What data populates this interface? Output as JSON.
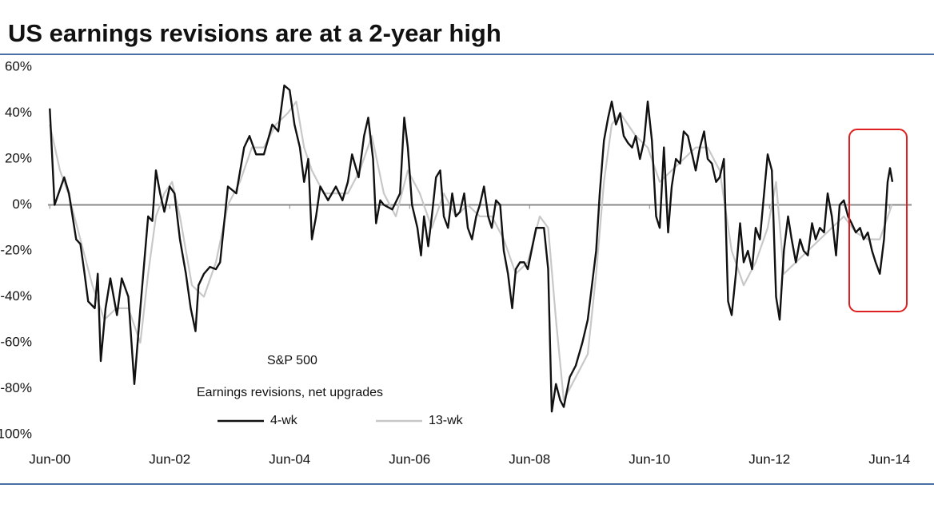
{
  "chart_data": {
    "type": "line",
    "title": "US earnings revisions are at a 2-year high",
    "annotations": [
      "S&P 500",
      "Earnings revisions, net upgrades"
    ],
    "xlim": [
      2000.39,
      2014.79
    ],
    "xticks": [
      {
        "value": 2000.42,
        "label": "Jun-00"
      },
      {
        "value": 2002.42,
        "label": "Jun-02"
      },
      {
        "value": 2004.42,
        "label": "Jun-04"
      },
      {
        "value": 2006.42,
        "label": "Jun-06"
      },
      {
        "value": 2008.42,
        "label": "Jun-08"
      },
      {
        "value": 2010.42,
        "label": "Jun-10"
      },
      {
        "value": 2012.42,
        "label": "Jun-12"
      },
      {
        "value": 2014.42,
        "label": "Jun-14"
      }
    ],
    "ylim": [
      -100,
      60
    ],
    "yticks": [
      {
        "value": 60,
        "label": "60%"
      },
      {
        "value": 40,
        "label": "40%"
      },
      {
        "value": 20,
        "label": "20%"
      },
      {
        "value": 0,
        "label": "0%"
      },
      {
        "value": -20,
        "label": "-20%"
      },
      {
        "value": -40,
        "label": "-40%"
      },
      {
        "value": -60,
        "label": "-60%"
      },
      {
        "value": -80,
        "label": "-80%"
      },
      {
        "value": -100,
        "label": "-100%"
      }
    ],
    "series": [
      {
        "name": "4-wk",
        "color": "#111111",
        "x": [
          2000.42,
          2000.5,
          2000.66,
          2000.74,
          2000.86,
          2000.93,
          2000.99,
          2001.06,
          2001.17,
          2001.22,
          2001.27,
          2001.35,
          2001.43,
          2001.54,
          2001.62,
          2001.73,
          2001.83,
          2001.93,
          2002.06,
          2002.13,
          2002.19,
          2002.26,
          2002.33,
          2002.42,
          2002.5,
          2002.59,
          2002.69,
          2002.77,
          2002.85,
          2002.9,
          2002.99,
          2003.09,
          2003.19,
          2003.26,
          2003.39,
          2003.53,
          2003.66,
          2003.75,
          2003.86,
          2003.99,
          2004.13,
          2004.23,
          2004.33,
          2004.42,
          2004.5,
          2004.59,
          2004.66,
          2004.73,
          2004.79,
          2004.86,
          2004.93,
          2005.06,
          2005.19,
          2005.3,
          2005.39,
          2005.46,
          2005.57,
          2005.66,
          2005.73,
          2005.81,
          2005.86,
          2005.93,
          2005.99,
          2006.13,
          2006.26,
          2006.33,
          2006.39,
          2006.46,
          2006.55,
          2006.61,
          2006.66,
          2006.73,
          2006.79,
          2006.86,
          2006.93,
          2006.99,
          2007.06,
          2007.13,
          2007.19,
          2007.26,
          2007.33,
          2007.39,
          2007.46,
          2007.53,
          2007.59,
          2007.66,
          2007.73,
          2007.79,
          2007.86,
          2007.93,
          2007.99,
          2008.06,
          2008.13,
          2008.19,
          2008.26,
          2008.33,
          2008.39,
          2008.53,
          2008.66,
          2008.73,
          2008.79,
          2008.86,
          2008.93,
          2008.99,
          2009.09,
          2009.19,
          2009.3,
          2009.39,
          2009.46,
          2009.53,
          2009.59,
          2009.66,
          2009.73,
          2009.79,
          2009.86,
          2009.93,
          2009.99,
          2010.06,
          2010.13,
          2010.19,
          2010.26,
          2010.33,
          2010.39,
          2010.46,
          2010.53,
          2010.59,
          2010.66,
          2010.73,
          2010.79,
          2010.86,
          2010.93,
          2010.99,
          2011.06,
          2011.13,
          2011.19,
          2011.26,
          2011.33,
          2011.39,
          2011.46,
          2011.53,
          2011.59,
          2011.66,
          2011.73,
          2011.79,
          2011.86,
          2011.93,
          2011.99,
          2012.06,
          2012.13,
          2012.19,
          2012.26,
          2012.33,
          2012.39,
          2012.46,
          2012.53,
          2012.59,
          2012.66,
          2012.73,
          2012.79,
          2012.86,
          2012.93,
          2012.99,
          2013.06,
          2013.13,
          2013.19,
          2013.26,
          2013.33,
          2013.39,
          2013.46,
          2013.53,
          2013.59,
          2013.66,
          2013.73,
          2013.79,
          2013.86,
          2013.93,
          2013.99,
          2014.06,
          2014.13,
          2014.19,
          2014.26,
          2014.33,
          2014.39,
          2014.43,
          2014.47
        ],
        "values": [
          42,
          0,
          12,
          5,
          -15,
          -17,
          -28,
          -42,
          -45,
          -30,
          -68,
          -45,
          -32,
          -48,
          -32,
          -40,
          -78,
          -45,
          -5,
          -7,
          15,
          5,
          -3,
          8,
          5,
          -15,
          -30,
          -45,
          -55,
          -35,
          -30,
          -27,
          -28,
          -25,
          8,
          5,
          25,
          30,
          22,
          22,
          35,
          32,
          52,
          50,
          35,
          25,
          10,
          20,
          -15,
          -5,
          8,
          2,
          8,
          2,
          10,
          22,
          12,
          30,
          38,
          20,
          -8,
          2,
          0,
          -2,
          5,
          38,
          25,
          0,
          -10,
          -22,
          -5,
          -18,
          -5,
          12,
          15,
          -5,
          -10,
          5,
          -5,
          -3,
          5,
          -10,
          -15,
          -5,
          0,
          8,
          -5,
          -10,
          2,
          0,
          -20,
          -30,
          -45,
          -28,
          -25,
          -25,
          -28,
          -10,
          -10,
          -28,
          -90,
          -78,
          -85,
          -88,
          -75,
          -70,
          -60,
          -50,
          -35,
          -20,
          5,
          28,
          38,
          45,
          35,
          40,
          30,
          27,
          25,
          30,
          20,
          28,
          45,
          28,
          -5,
          -10,
          25,
          -12,
          8,
          20,
          18,
          32,
          30,
          22,
          15,
          25,
          32,
          20,
          18,
          10,
          12,
          20,
          -42,
          -48,
          -30,
          -8,
          -25,
          -20,
          -28,
          -10,
          -15,
          5,
          22,
          15,
          -40,
          -50,
          -20,
          -5,
          -15,
          -25,
          -15,
          -20,
          -22,
          -8,
          -15,
          -10,
          -12,
          5,
          -5,
          -22,
          0,
          2,
          -5,
          -8,
          -12,
          -10,
          -15,
          -12,
          -20,
          -25,
          -30,
          -15,
          10,
          16,
          10
        ]
      },
      {
        "name": "13-wk",
        "color": "#c8c8c8",
        "x": [
          2000.42,
          2000.59,
          2000.73,
          2000.93,
          2001.13,
          2001.33,
          2001.53,
          2001.73,
          2001.93,
          2002.06,
          2002.19,
          2002.33,
          2002.46,
          2002.59,
          2002.79,
          2002.99,
          2003.19,
          2003.39,
          2003.59,
          2003.79,
          2003.99,
          2004.19,
          2004.39,
          2004.53,
          2004.66,
          2004.79,
          2004.99,
          2005.19,
          2005.39,
          2005.59,
          2005.79,
          2005.99,
          2006.19,
          2006.39,
          2006.59,
          2006.79,
          2006.99,
          2007.19,
          2007.39,
          2007.59,
          2007.79,
          2007.99,
          2008.19,
          2008.39,
          2008.59,
          2008.73,
          2008.86,
          2008.99,
          2009.19,
          2009.39,
          2009.53,
          2009.66,
          2009.79,
          2009.93,
          2010.06,
          2010.19,
          2010.39,
          2010.59,
          2010.79,
          2010.99,
          2011.19,
          2011.39,
          2011.59,
          2011.79,
          2011.99,
          2012.19,
          2012.39,
          2012.53,
          2012.66,
          2012.86,
          2013.06,
          2013.26,
          2013.46,
          2013.66,
          2013.86,
          2014.06,
          2014.26,
          2014.46
        ],
        "values": [
          35,
          15,
          5,
          -15,
          -35,
          -50,
          -45,
          -45,
          -60,
          -30,
          -5,
          5,
          10,
          -5,
          -35,
          -40,
          -25,
          0,
          10,
          25,
          25,
          35,
          40,
          45,
          25,
          15,
          5,
          5,
          5,
          15,
          30,
          5,
          -5,
          15,
          5,
          -10,
          5,
          -5,
          0,
          -5,
          -5,
          -15,
          -30,
          -25,
          -5,
          -10,
          -50,
          -85,
          -75,
          -65,
          -30,
          10,
          35,
          40,
          35,
          30,
          25,
          10,
          15,
          20,
          25,
          25,
          15,
          -20,
          -35,
          -25,
          -10,
          10,
          -30,
          -25,
          -20,
          -15,
          -10,
          -5,
          -12,
          -15,
          -15,
          0
        ]
      }
    ]
  }
}
